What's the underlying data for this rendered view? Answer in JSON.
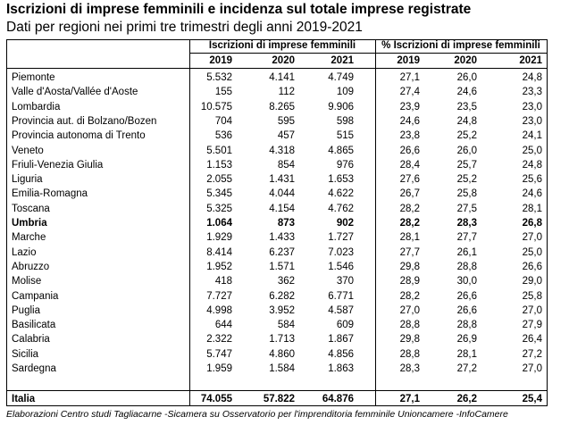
{
  "title": "Iscrizioni di imprese femminili e incidenza sul totale imprese registrate",
  "subtitle": "Dati per regioni nei primi tre trimestri degli anni 2019-2021",
  "table": {
    "group_headers": [
      "Iscrizioni di imprese femminili",
      "% Iscrizioni di imprese femminili"
    ],
    "years": [
      "2019",
      "2020",
      "2021"
    ],
    "rows": [
      {
        "region": "Piemonte",
        "v2019": "5.532",
        "v2020": "4.141",
        "v2021": "4.749",
        "p2019": "27,1",
        "p2020": "26,0",
        "p2021": "24,8"
      },
      {
        "region": "Valle d'Aosta/Vallée d'Aoste",
        "v2019": "155",
        "v2020": "112",
        "v2021": "109",
        "p2019": "27,4",
        "p2020": "24,6",
        "p2021": "23,3"
      },
      {
        "region": "Lombardia",
        "v2019": "10.575",
        "v2020": "8.265",
        "v2021": "9.906",
        "p2019": "23,9",
        "p2020": "23,5",
        "p2021": "23,0"
      },
      {
        "region": "Provincia aut. di Bolzano/Bozen",
        "v2019": "704",
        "v2020": "595",
        "v2021": "598",
        "p2019": "24,6",
        "p2020": "24,8",
        "p2021": "23,0"
      },
      {
        "region": "Provincia autonoma di Trento",
        "v2019": "536",
        "v2020": "457",
        "v2021": "515",
        "p2019": "23,8",
        "p2020": "25,2",
        "p2021": "24,1"
      },
      {
        "region": "Veneto",
        "v2019": "5.501",
        "v2020": "4.318",
        "v2021": "4.865",
        "p2019": "26,6",
        "p2020": "26,0",
        "p2021": "25,0"
      },
      {
        "region": "Friuli-Venezia Giulia",
        "v2019": "1.153",
        "v2020": "854",
        "v2021": "976",
        "p2019": "28,4",
        "p2020": "25,7",
        "p2021": "24,8"
      },
      {
        "region": "Liguria",
        "v2019": "2.055",
        "v2020": "1.431",
        "v2021": "1.653",
        "p2019": "27,6",
        "p2020": "25,2",
        "p2021": "25,6"
      },
      {
        "region": "Emilia-Romagna",
        "v2019": "5.345",
        "v2020": "4.044",
        "v2021": "4.622",
        "p2019": "26,7",
        "p2020": "25,8",
        "p2021": "24,6"
      },
      {
        "region": "Toscana",
        "v2019": "5.325",
        "v2020": "4.154",
        "v2021": "4.762",
        "p2019": "28,2",
        "p2020": "27,5",
        "p2021": "28,1"
      },
      {
        "region": "Umbria",
        "v2019": "1.064",
        "v2020": "873",
        "v2021": "902",
        "p2019": "28,2",
        "p2020": "28,3",
        "p2021": "26,8",
        "bold": true
      },
      {
        "region": "Marche",
        "v2019": "1.929",
        "v2020": "1.433",
        "v2021": "1.727",
        "p2019": "28,1",
        "p2020": "27,7",
        "p2021": "27,0"
      },
      {
        "region": "Lazio",
        "v2019": "8.414",
        "v2020": "6.237",
        "v2021": "7.023",
        "p2019": "27,7",
        "p2020": "26,1",
        "p2021": "25,0"
      },
      {
        "region": "Abruzzo",
        "v2019": "1.952",
        "v2020": "1.571",
        "v2021": "1.546",
        "p2019": "29,8",
        "p2020": "28,8",
        "p2021": "26,6"
      },
      {
        "region": "Molise",
        "v2019": "418",
        "v2020": "362",
        "v2021": "370",
        "p2019": "28,9",
        "p2020": "30,0",
        "p2021": "29,0"
      },
      {
        "region": "Campania",
        "v2019": "7.727",
        "v2020": "6.282",
        "v2021": "6.771",
        "p2019": "28,2",
        "p2020": "26,6",
        "p2021": "25,8"
      },
      {
        "region": "Puglia",
        "v2019": "4.998",
        "v2020": "3.952",
        "v2021": "4.587",
        "p2019": "27,0",
        "p2020": "26,6",
        "p2021": "27,0"
      },
      {
        "region": "Basilicata",
        "v2019": "644",
        "v2020": "584",
        "v2021": "609",
        "p2019": "28,8",
        "p2020": "28,8",
        "p2021": "27,9"
      },
      {
        "region": "Calabria",
        "v2019": "2.322",
        "v2020": "1.713",
        "v2021": "1.867",
        "p2019": "29,8",
        "p2020": "26,9",
        "p2021": "26,4"
      },
      {
        "region": "Sicilia",
        "v2019": "5.747",
        "v2020": "4.860",
        "v2021": "4.856",
        "p2019": "28,8",
        "p2020": "28,1",
        "p2021": "27,2"
      },
      {
        "region": "Sardegna",
        "v2019": "1.959",
        "v2020": "1.584",
        "v2021": "1.863",
        "p2019": "28,3",
        "p2020": "27,2",
        "p2021": "27,0"
      }
    ],
    "total": {
      "region": "Italia",
      "v2019": "74.055",
      "v2020": "57.822",
      "v2021": "64.876",
      "p2019": "27,1",
      "p2020": "26,2",
      "p2021": "25,4"
    }
  },
  "footer": "Elaborazioni Centro studi Tagliacarne -Sicamera su Osservatorio per l'imprenditoria femminile Unioncamere -InfoCamere"
}
